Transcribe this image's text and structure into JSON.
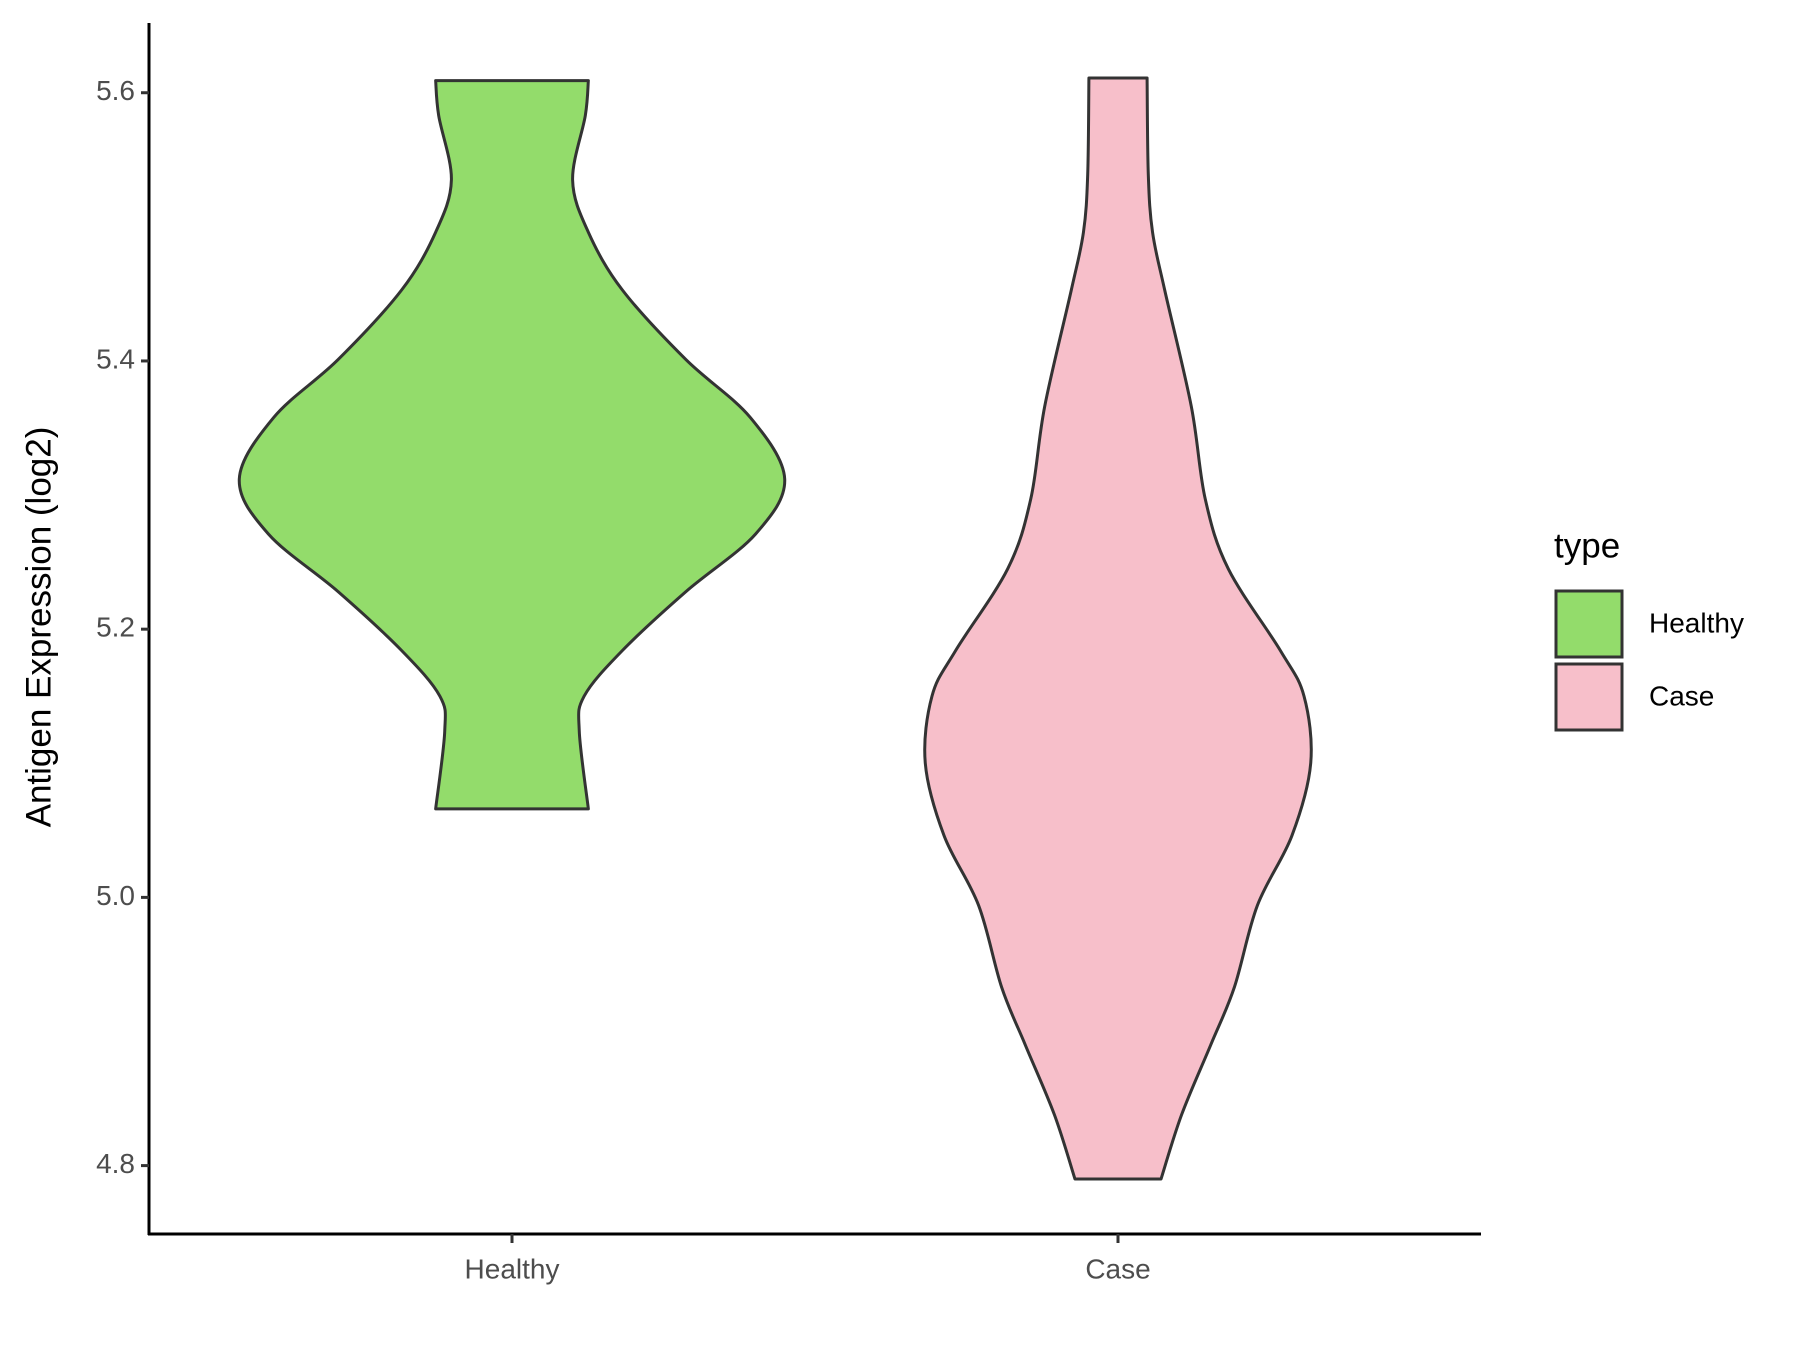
{
  "chart_data": {
    "type": "violin",
    "y_label": "Antigen Expression (log2)",
    "legend_title": "type",
    "categories": [
      "Healthy",
      "Case"
    ],
    "series": [
      {
        "name": "Healthy",
        "color": "#93dc6b",
        "y": [
          5.609,
          5.583,
          5.535,
          5.496,
          5.453,
          5.401,
          5.358,
          5.312,
          5.271,
          5.228,
          5.184,
          5.15,
          5.124,
          5.066
        ],
        "half_width": [
          0.126,
          0.121,
          0.1,
          0.126,
          0.182,
          0.287,
          0.393,
          0.45,
          0.402,
          0.287,
          0.182,
          0.119,
          0.111,
          0.126
        ]
      },
      {
        "name": "Case",
        "color": "#f7bfca",
        "y": [
          5.611,
          5.539,
          5.496,
          5.453,
          5.366,
          5.297,
          5.245,
          5.184,
          5.15,
          5.1,
          5.046,
          4.994,
          4.933,
          4.89,
          4.838,
          4.79
        ],
        "half_width": [
          0.048,
          0.05,
          0.057,
          0.077,
          0.121,
          0.144,
          0.182,
          0.268,
          0.307,
          0.318,
          0.287,
          0.23,
          0.192,
          0.153,
          0.105,
          0.071
        ]
      }
    ],
    "ylim": [
      4.749,
      5.652
    ],
    "yticks": [
      4.8,
      5.2,
      5.4,
      5.6,
      {
        "value": 5,
        "label": "5.0"
      }
    ]
  }
}
